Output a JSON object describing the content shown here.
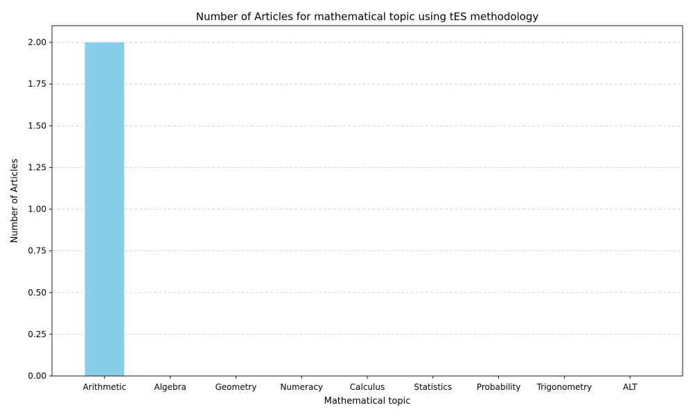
{
  "chart_data": {
    "type": "bar",
    "title": "Number of Articles for mathematical topic using tES methodology",
    "xlabel": "Mathematical topic",
    "ylabel": "Number of Articles",
    "categories": [
      "Arithmetic",
      "Algebra",
      "Geometry",
      "Numeracy",
      "Calculus",
      "Statistics",
      "Probability",
      "Trigonometry",
      "ALT"
    ],
    "values": [
      2,
      0,
      0,
      0,
      0,
      0,
      0,
      0,
      0
    ],
    "ylim": [
      0,
      2.1
    ],
    "yticks": [
      "0.00",
      "0.25",
      "0.50",
      "0.75",
      "1.00",
      "1.25",
      "1.50",
      "1.75",
      "2.00"
    ],
    "grid": "y-dashed",
    "bar_color": "#87ceeb",
    "legend": "none"
  }
}
